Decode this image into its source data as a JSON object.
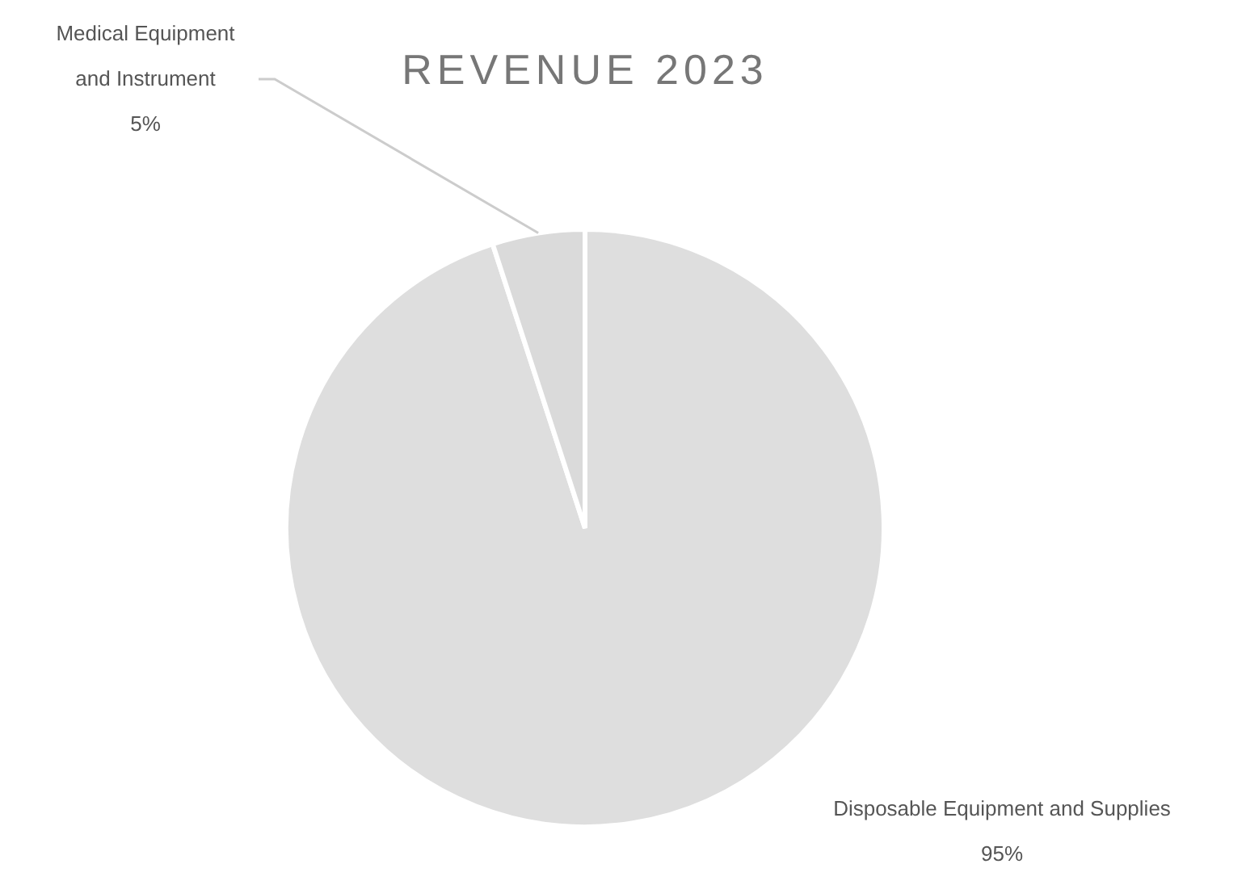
{
  "chart_data": {
    "type": "pie",
    "title": "REVENUE 2023",
    "categories": [
      "Disposable Equipment and Supplies",
      "Medical Equipment and Instrument"
    ],
    "values": [
      95,
      5
    ],
    "colors": [
      "#dedede",
      "#dadada"
    ],
    "value_labels": [
      "95%",
      "5%"
    ],
    "legend": false
  }
}
